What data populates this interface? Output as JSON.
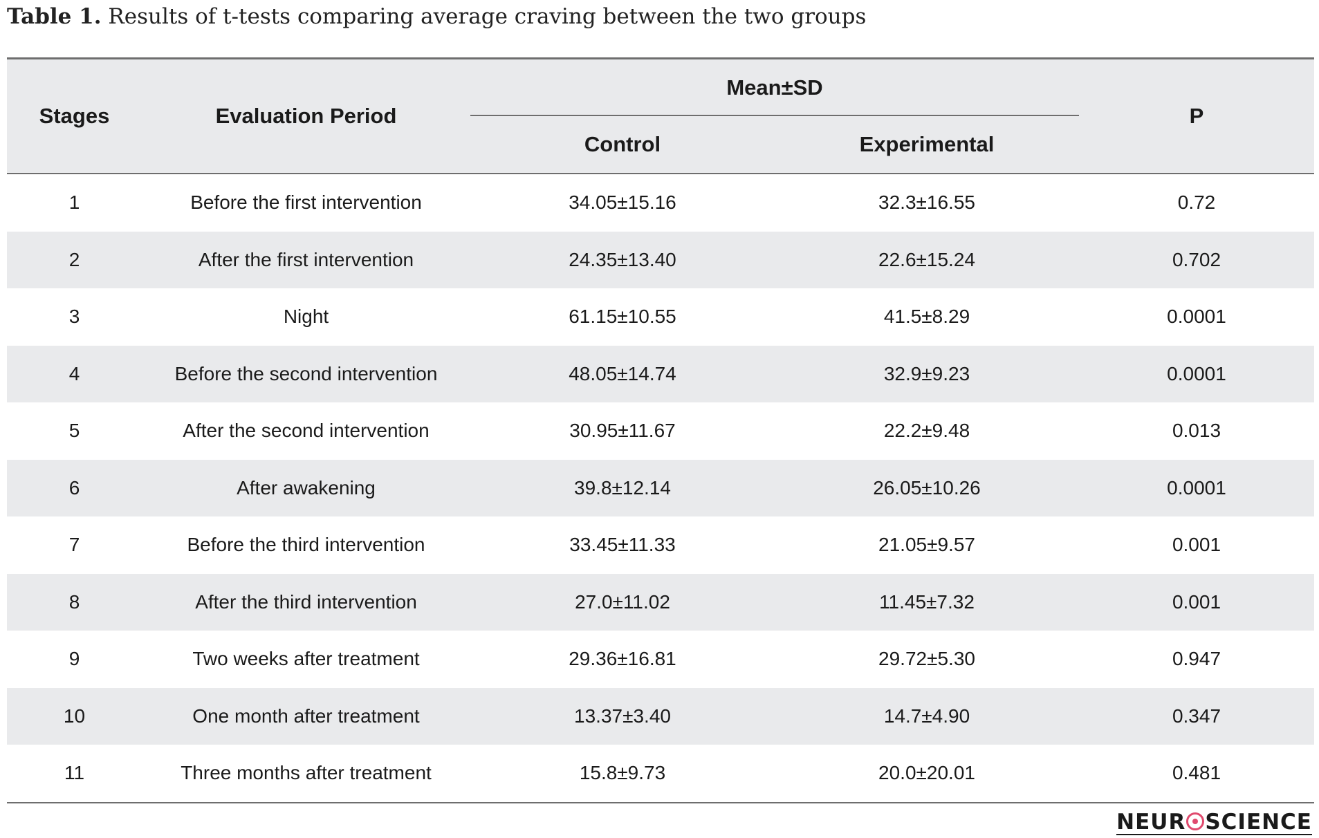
{
  "caption": {
    "label": "Table 1.",
    "text": "Results of t-tests comparing average craving between the two groups"
  },
  "table": {
    "headers": {
      "stages": "Stages",
      "evaluation_period": "Evaluation Period",
      "mean_sd": "Mean±SD",
      "control": "Control",
      "experimental": "Experimental",
      "p": "P"
    },
    "rows": [
      {
        "stage": "1",
        "period": "Before the first intervention",
        "control": "34.05±15.16",
        "experimental": "32.3±16.55",
        "p": "0.72"
      },
      {
        "stage": "2",
        "period": "After the first intervention",
        "control": "24.35±13.40",
        "experimental": "22.6±15.24",
        "p": "0.702"
      },
      {
        "stage": "3",
        "period": "Night",
        "control": "61.15±10.55",
        "experimental": "41.5±8.29",
        "p": "0.0001"
      },
      {
        "stage": "4",
        "period": "Before the second intervention",
        "control": "48.05±14.74",
        "experimental": "32.9±9.23",
        "p": "0.0001"
      },
      {
        "stage": "5",
        "period": "After the second intervention",
        "control": "30.95±11.67",
        "experimental": "22.2±9.48",
        "p": "0.013"
      },
      {
        "stage": "6",
        "period": "After awakening",
        "control": "39.8±12.14",
        "experimental": "26.05±10.26",
        "p": "0.0001"
      },
      {
        "stage": "7",
        "period": "Before the third intervention",
        "control": "33.45±11.33",
        "experimental": "21.05±9.57",
        "p": "0.001"
      },
      {
        "stage": "8",
        "period": "After the third intervention",
        "control": "27.0±11.02",
        "experimental": "11.45±7.32",
        "p": "0.001"
      },
      {
        "stage": "9",
        "period": "Two weeks after treatment",
        "control": "29.36±16.81",
        "experimental": "29.72±5.30",
        "p": "0.947"
      },
      {
        "stage": "10",
        "period": "One month after treatment",
        "control": "13.37±3.40",
        "experimental": "14.7±4.90",
        "p": "0.347"
      },
      {
        "stage": "11",
        "period": "Three months after treatment",
        "control": "15.8±9.73",
        "experimental": "20.0±20.01",
        "p": "0.481"
      }
    ]
  },
  "logo": {
    "text_before": "NEUR",
    "text_after": "SCIENCE",
    "brand_color": "#e04a6e"
  }
}
